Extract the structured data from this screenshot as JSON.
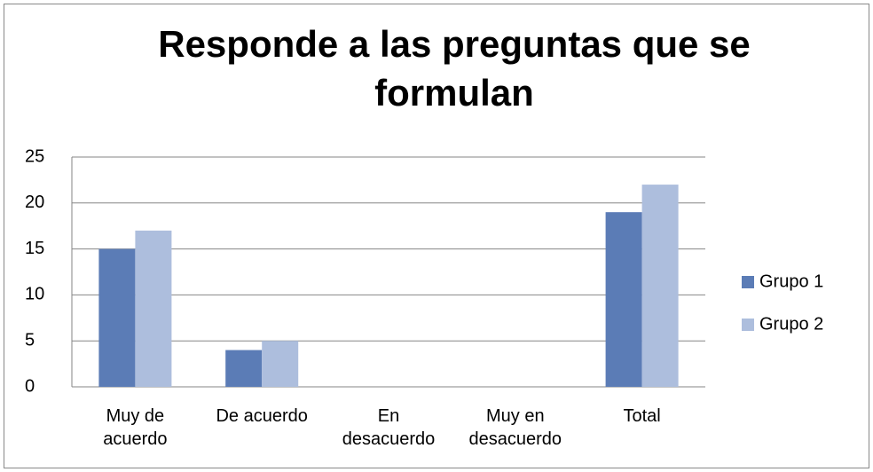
{
  "chart_data": {
    "type": "bar",
    "title": "Responde a las preguntas que se formulan",
    "categories": [
      "Muy de acuerdo",
      "De acuerdo",
      "En desacuerdo",
      "Muy en desacuerdo",
      "Total"
    ],
    "series": [
      {
        "name": "Grupo 1",
        "color": "#5b7cb6",
        "values": [
          15,
          4,
          0,
          0,
          19
        ]
      },
      {
        "name": "Grupo 2",
        "color": "#adbedd",
        "values": [
          17,
          5,
          0,
          0,
          22
        ]
      }
    ],
    "ylim": [
      0,
      25
    ],
    "yticks": [
      0,
      5,
      10,
      15,
      20,
      25
    ],
    "grid": true,
    "legend": "right"
  }
}
